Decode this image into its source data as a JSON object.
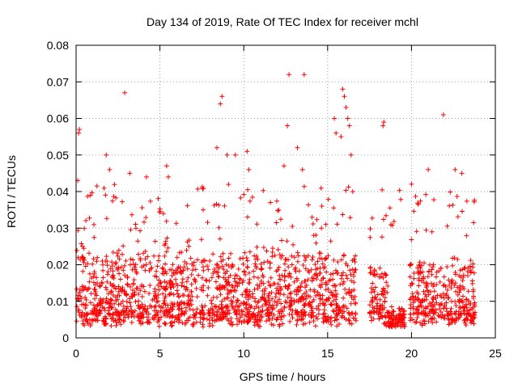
{
  "chart_data": {
    "type": "scatter",
    "title": "Day 134 of 2019, Rate Of TEC Index for receiver mchl",
    "xlabel": "GPS time / hours",
    "ylabel": "ROTI / TECUs",
    "xlim": [
      0,
      25
    ],
    "ylim": [
      0,
      0.08
    ],
    "xticks": [
      0,
      5,
      10,
      15,
      20,
      25
    ],
    "xtick_labels": [
      "0",
      "5",
      "10",
      "15",
      "20",
      "25"
    ],
    "yticks": [
      0,
      0.01,
      0.02,
      0.03,
      0.04,
      0.05,
      0.06,
      0.07,
      0.08
    ],
    "ytick_labels": [
      "0",
      "0.01",
      "0.02",
      "0.03",
      "0.04",
      "0.05",
      "0.06",
      "0.07",
      "0.08"
    ],
    "grid": true,
    "marker": "+",
    "color": "#ff0000",
    "series": [
      {
        "name": "ROTI",
        "segments": [
          {
            "start": 0.0,
            "end": 16.7,
            "base": 0.011,
            "spread": 0.018
          },
          {
            "start": 17.5,
            "end": 18.6,
            "base": 0.011,
            "spread": 0.014
          },
          {
            "start": 18.6,
            "end": 19.6,
            "base": 0.008,
            "spread": 0.006
          },
          {
            "start": 19.9,
            "end": 23.8,
            "base": 0.011,
            "spread": 0.016
          }
        ],
        "outliers": [
          {
            "x": 0.1,
            "y": 0.043
          },
          {
            "x": 0.15,
            "y": 0.056
          },
          {
            "x": 0.2,
            "y": 0.057
          },
          {
            "x": 1.8,
            "y": 0.05
          },
          {
            "x": 2.0,
            "y": 0.046
          },
          {
            "x": 2.9,
            "y": 0.067
          },
          {
            "x": 5.4,
            "y": 0.047
          },
          {
            "x": 5.5,
            "y": 0.044
          },
          {
            "x": 8.4,
            "y": 0.052
          },
          {
            "x": 8.6,
            "y": 0.064
          },
          {
            "x": 8.7,
            "y": 0.066
          },
          {
            "x": 9.5,
            "y": 0.05
          },
          {
            "x": 10.2,
            "y": 0.051
          },
          {
            "x": 10.3,
            "y": 0.046
          },
          {
            "x": 12.6,
            "y": 0.058
          },
          {
            "x": 12.7,
            "y": 0.072
          },
          {
            "x": 13.2,
            "y": 0.052
          },
          {
            "x": 13.6,
            "y": 0.072
          },
          {
            "x": 13.5,
            "y": 0.046
          },
          {
            "x": 15.4,
            "y": 0.06
          },
          {
            "x": 15.5,
            "y": 0.056
          },
          {
            "x": 15.9,
            "y": 0.068
          },
          {
            "x": 16.0,
            "y": 0.066
          },
          {
            "x": 16.1,
            "y": 0.063
          },
          {
            "x": 16.2,
            "y": 0.06
          },
          {
            "x": 16.3,
            "y": 0.058
          },
          {
            "x": 15.8,
            "y": 0.055
          },
          {
            "x": 16.4,
            "y": 0.05
          },
          {
            "x": 18.3,
            "y": 0.058
          },
          {
            "x": 18.35,
            "y": 0.059
          },
          {
            "x": 20.0,
            "y": 0.042
          },
          {
            "x": 21.0,
            "y": 0.046
          },
          {
            "x": 21.9,
            "y": 0.061
          },
          {
            "x": 22.6,
            "y": 0.046
          },
          {
            "x": 23.0,
            "y": 0.045
          },
          {
            "x": 12.4,
            "y": 0.047
          },
          {
            "x": 9.0,
            "y": 0.05
          },
          {
            "x": 4.2,
            "y": 0.044
          },
          {
            "x": 3.2,
            "y": 0.045
          }
        ]
      }
    ]
  }
}
